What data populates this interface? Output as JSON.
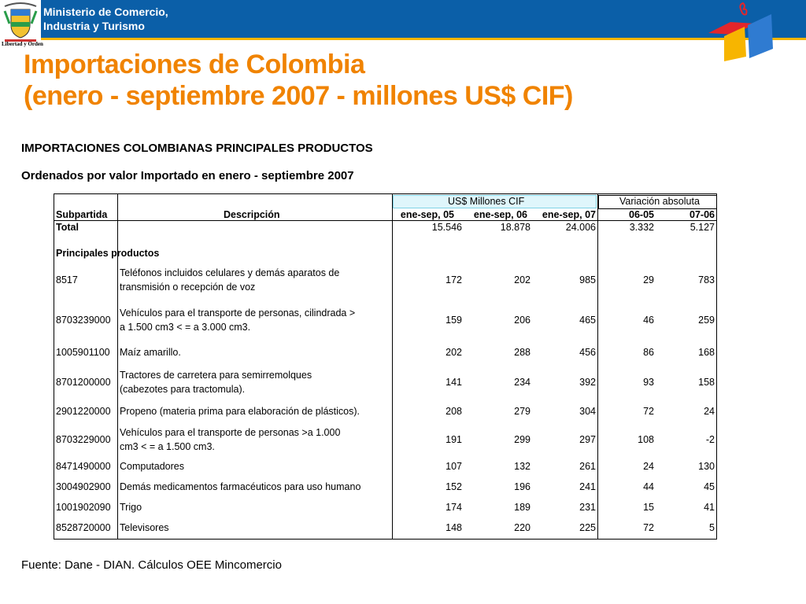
{
  "header": {
    "ministry_line1": "Ministerio de Comercio,",
    "ministry_line2": "Industria y Turismo",
    "shield_caption": "Libertad y Orden"
  },
  "title": {
    "line1": "Importaciones de Colombia",
    "line2": "(enero - septiembre 2007 - millones US$ CIF)"
  },
  "subtitle1": "IMPORTACIONES COLOMBIANAS PRINCIPALES PRODUCTOS",
  "subtitle2": "Ordenados por valor Importado en enero  - septiembre 2007",
  "table": {
    "group_usd": "US$ Millones CIF",
    "group_var": "Variación absoluta",
    "col_subpartida": "Subpartida",
    "col_descripcion": "Descripción",
    "col_2005": "ene-sep, 05",
    "col_2006": "ene-sep, 06",
    "col_2007": "ene-sep, 07",
    "col_v1": "06-05",
    "col_v2": "07-06",
    "total": {
      "label": "Total",
      "v05": "15.546",
      "v06": "18.878",
      "v07": "24.006",
      "d1": "3.332",
      "d2": "5.127"
    },
    "section_label": "Principales productos",
    "rows": [
      {
        "code": "8517",
        "desc1": "Teléfonos incluidos celulares y demás aparatos de",
        "desc2": "transmisión o recepción de voz",
        "v05": "172",
        "v06": "202",
        "v07": "985",
        "d1": "29",
        "d2": "783"
      },
      {
        "code": "8703239000",
        "desc1": "Vehículos para el transporte de personas, cilindrada >",
        "desc2": "a 1.500 cm3 < = a 3.000 cm3.",
        "v05": "159",
        "v06": "206",
        "v07": "465",
        "d1": "46",
        "d2": "259"
      },
      {
        "code": "1005901100",
        "desc1": "Maíz amarillo.",
        "desc2": "",
        "v05": "202",
        "v06": "288",
        "v07": "456",
        "d1": "86",
        "d2": "168"
      },
      {
        "code": "8701200000",
        "desc1": "Tractores de carretera para semirremolques",
        "desc2": "(cabezotes para tractomula).",
        "v05": "141",
        "v06": "234",
        "v07": "392",
        "d1": "93",
        "d2": "158"
      },
      {
        "code": "2901220000",
        "desc1": "Propeno (materia prima para elaboración de plásticos).",
        "desc2": "",
        "v05": "208",
        "v06": "279",
        "v07": "304",
        "d1": "72",
        "d2": "24"
      },
      {
        "code": "8703229000",
        "desc1": "Vehículos para el transporte de personas >a 1.000",
        "desc2": "cm3 < = a 1.500 cm3.",
        "v05": "191",
        "v06": "299",
        "v07": "297",
        "d1": "108",
        "d2": "-2"
      },
      {
        "code": "8471490000",
        "desc1": "Computadores",
        "desc2": "",
        "v05": "107",
        "v06": "132",
        "v07": "261",
        "d1": "24",
        "d2": "130"
      },
      {
        "code": "3004902900",
        "desc1": "Demás medicamentos farmacéuticos para uso humano",
        "desc2": "",
        "v05": "152",
        "v06": "196",
        "v07": "241",
        "d1": "44",
        "d2": "45"
      },
      {
        "code": "1001902090",
        "desc1": "Trigo",
        "desc2": "",
        "v05": "174",
        "v06": "189",
        "v07": "231",
        "d1": "15",
        "d2": "41"
      },
      {
        "code": "8528720000",
        "desc1": "Televisores",
        "desc2": "",
        "v05": "148",
        "v06": "220",
        "v07": "225",
        "d1": "72",
        "d2": "5"
      }
    ]
  },
  "source": "Fuente: Dane - DIAN. Cálculos OEE Mincomercio",
  "colors": {
    "header_blue": "#0b5fa8",
    "title_orange": "#f08300",
    "accent_yellow": "#f7b500",
    "logo_red": "#e3262b",
    "logo_blue": "#2f7bd1"
  }
}
